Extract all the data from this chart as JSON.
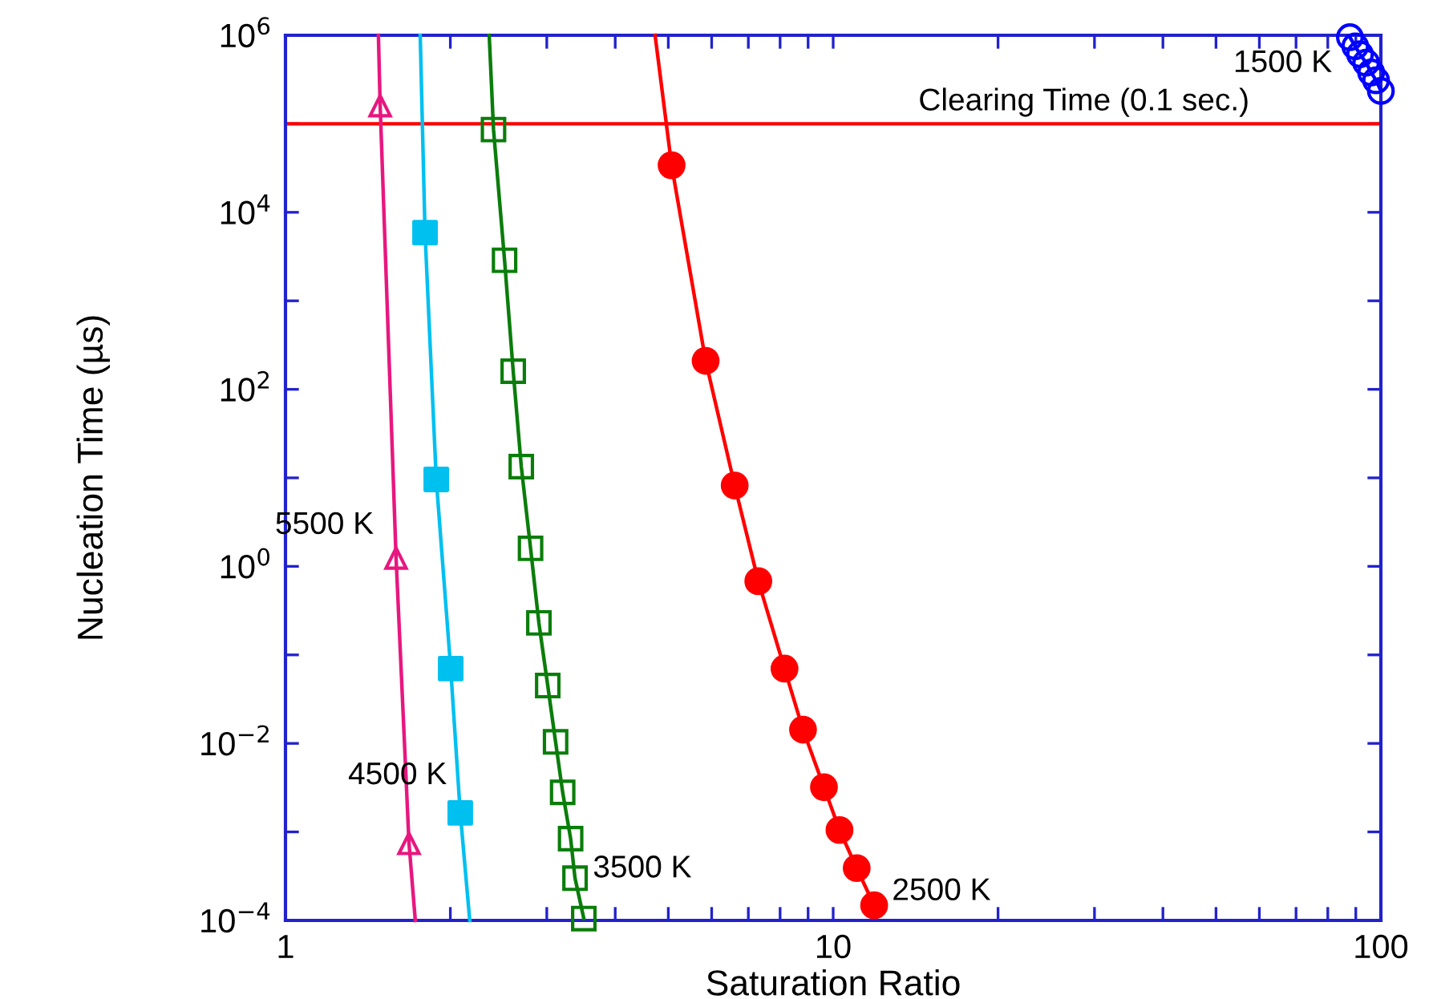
{
  "chart_data": {
    "type": "line",
    "xlabel": "Saturation Ratio",
    "ylabel": "Nucleation Time (µs)",
    "log": "xy",
    "grid": false,
    "xlim": [
      1,
      100
    ],
    "ylim": [
      0.0001,
      1000000
    ],
    "xticks": [
      1,
      {
        "value": 2,
        "label": null
      },
      {
        "value": 3,
        "label": null
      },
      {
        "value": 4,
        "label": null
      },
      {
        "value": 5,
        "label": null
      },
      {
        "value": 6,
        "label": null
      },
      {
        "value": 7,
        "label": null
      },
      {
        "value": 8,
        "label": null
      },
      {
        "value": 9,
        "label": null
      },
      10,
      {
        "value": 20,
        "label": null
      },
      {
        "value": 30,
        "label": null
      },
      {
        "value": 40,
        "label": null
      },
      {
        "value": 50,
        "label": null
      },
      {
        "value": 60,
        "label": null
      },
      {
        "value": 70,
        "label": null
      },
      {
        "value": 80,
        "label": null
      },
      {
        "value": 90,
        "label": null
      },
      100
    ],
    "yticks": [
      {
        "value": 0.0001,
        "label": "10$^{−4}$"
      },
      {
        "value": 0.001,
        "label": null
      },
      {
        "value": 0.01,
        "label": "10$^{−2}$"
      },
      {
        "value": 0.1,
        "label": null
      },
      {
        "value": 1,
        "label": "10$^{0}$"
      },
      {
        "value": 10,
        "label": null
      },
      {
        "value": 100,
        "label": "10$^{2}$"
      },
      {
        "value": 1000,
        "label": null
      },
      {
        "value": 10000,
        "label": "10$^{4}$"
      },
      {
        "value": 100000,
        "label": null
      },
      {
        "value": 1000000,
        "label": "10$^{6}$"
      }
    ],
    "series": [
      {
        "color": "#e8177f",
        "marker": "triangle",
        "x": [
          1.478,
          1.489,
          1.592,
          1.681,
          1.726
        ],
        "values": [
          1000000,
          160000,
          1.24,
          0.00074,
          0.0001
        ]
      },
      {
        "color": "#00c0f0",
        "marker": "none",
        "x": [
          1.762,
          1.798,
          1.885,
          2.003,
          2.085,
          2.17
        ],
        "values": [
          1000000,
          5900,
          9.6,
          0.07,
          0.00164,
          0.0001
        ]
      },
      {
        "type": "scatter",
        "color": "#00c0f0",
        "marker": "square",
        "x": [
          1.798,
          1.885,
          2.003,
          2.085
        ],
        "values": [
          5900,
          9.6,
          0.07,
          0.00164
        ]
      },
      {
        "color": "#0a7d0a",
        "marker": "square",
        "x": [
          2.355,
          2.398,
          2.512,
          2.605,
          2.695,
          2.802,
          2.902,
          3.012,
          3.113,
          3.207,
          3.316,
          3.378,
          3.505
        ],
        "values": [
          1000000,
          86000,
          2870,
          160,
          13.4,
          1.6,
          0.23,
          0.045,
          0.0104,
          0.0028,
          0.00084,
          0.0003,
          0.000105
        ]
      },
      {
        "color": "#ff0000",
        "marker": "none",
        "x": [
          4.73,
          5.07,
          5.85,
          6.61,
          7.3,
          8.15,
          8.81,
          9.62,
          10.27,
          11.04,
          11.88
        ],
        "values": [
          1000000,
          34000,
          210,
          8.2,
          0.68,
          0.07,
          0.0143,
          0.0032,
          0.00105,
          0.00039,
          0.000148
        ]
      },
      {
        "type": "scatter",
        "color": "#ff0000",
        "marker": "circle",
        "x": [
          5.07,
          5.85,
          6.61,
          7.3,
          8.15,
          8.81,
          9.62,
          10.27,
          11.04,
          11.88
        ],
        "values": [
          34000,
          210,
          8.2,
          0.68,
          0.07,
          0.0143,
          0.0032,
          0.00105,
          0.00039,
          0.000148
        ]
      },
      {
        "color": "#0000ff",
        "marker": "circle",
        "x": [
          87.8,
          89.8,
          91.6,
          94.0,
          96.0,
          98.0,
          100
        ],
        "values": [
          950000,
          750000,
          610000,
          490000,
          380000,
          310000,
          235000
        ]
      }
    ],
    "ref_lines": [
      {
        "axis": "y",
        "value": 100000,
        "label": "Clearing Time (0.1 sec.)",
        "color": "#ff0000"
      }
    ],
    "annotations": [
      {
        "text": "5500 K",
        "x": 1.592,
        "y": 1.24
      },
      {
        "text": "4500 K",
        "x": 2.085,
        "y": 0.00164
      },
      {
        "text": "3500 K",
        "x": 3.378,
        "y": 0.0003
      },
      {
        "text": "2500 K",
        "x": 11.88,
        "y": 0.000148
      },
      {
        "text": "1500 K",
        "x": 87.8,
        "y": 950000
      }
    ]
  }
}
